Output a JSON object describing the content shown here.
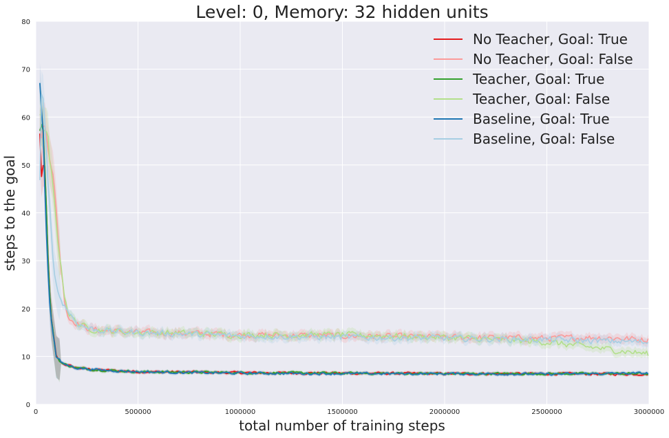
{
  "chart_data": {
    "type": "line",
    "title": "Level: 0, Memory: 32 hidden units",
    "xlabel": "total number of training steps",
    "ylabel": "steps to the goal",
    "xlim": [
      0,
      3000000
    ],
    "ylim": [
      0,
      80
    ],
    "xticks": [
      0,
      500000,
      1000000,
      1500000,
      2000000,
      2500000,
      3000000
    ],
    "xtick_labels": [
      "0",
      "500000",
      "1000000",
      "1500000",
      "2000000",
      "2500000",
      "3000000"
    ],
    "yticks": [
      0,
      10,
      20,
      30,
      40,
      50,
      60,
      70,
      80
    ],
    "ytick_labels": [
      "0",
      "10",
      "20",
      "30",
      "40",
      "50",
      "60",
      "70",
      "80"
    ],
    "grid": true,
    "background": "#eaeaf2",
    "legend_position": "top-right",
    "series": [
      {
        "name": "No Teacher, Goal: True",
        "color": "#e41a1c",
        "x": [
          20000,
          30000,
          40000,
          50000,
          60000,
          75000,
          100000,
          130000,
          200000,
          300000,
          500000,
          800000,
          1000000,
          1500000,
          2000000,
          2500000,
          3000000
        ],
        "y": [
          56,
          46,
          52,
          42,
          30,
          18,
          10,
          8.5,
          7.6,
          7.2,
          6.8,
          6.7,
          6.6,
          6.5,
          6.4,
          6.4,
          6.3
        ]
      },
      {
        "name": "No Teacher, Goal: False",
        "color": "#fb9a99",
        "x": [
          20000,
          40000,
          60000,
          80000,
          100000,
          120000,
          140000,
          160000,
          200000,
          250000,
          300000,
          500000,
          800000,
          1000000,
          1500000,
          2000000,
          2500000,
          2750000,
          3000000
        ],
        "y": [
          56,
          58,
          55,
          50,
          40,
          30,
          22,
          18,
          17,
          16,
          15.5,
          15,
          14.8,
          14.5,
          14.3,
          14,
          13.8,
          14,
          13.5
        ]
      },
      {
        "name": "Teacher, Goal: True",
        "color": "#33a02c",
        "x": [
          20000,
          30000,
          40000,
          50000,
          60000,
          75000,
          100000,
          130000,
          200000,
          300000,
          500000,
          800000,
          1000000,
          1500000,
          2000000,
          2500000,
          3000000
        ],
        "y": [
          59,
          60,
          55,
          44,
          30,
          18,
          10,
          8.5,
          7.6,
          7.2,
          6.8,
          6.7,
          6.6,
          6.5,
          6.4,
          6.4,
          6.4
        ]
      },
      {
        "name": "Teacher, Goal: False",
        "color": "#b2df8a",
        "x": [
          20000,
          40000,
          60000,
          80000,
          100000,
          120000,
          140000,
          160000,
          200000,
          250000,
          300000,
          500000,
          800000,
          1000000,
          1500000,
          2000000,
          2500000,
          2800000,
          3000000
        ],
        "y": [
          59,
          58,
          54,
          46,
          38,
          30,
          23,
          19,
          17,
          16,
          15.5,
          15,
          14.8,
          14.5,
          14.5,
          14,
          13,
          11.5,
          10.5
        ]
      },
      {
        "name": "Baseline, Goal: True",
        "color": "#1f78b4",
        "x": [
          20000,
          25000,
          35000,
          45000,
          55000,
          70000,
          100000,
          130000,
          200000,
          300000,
          500000,
          800000,
          1000000,
          1500000,
          2000000,
          2500000,
          3000000
        ],
        "y": [
          66,
          63,
          58,
          45,
          32,
          20,
          10,
          8.5,
          7.6,
          7.2,
          6.8,
          6.6,
          6.5,
          6.4,
          6.4,
          6.3,
          6.5
        ]
      },
      {
        "name": "Baseline, Goal: False",
        "color": "#a6cee3",
        "x": [
          20000,
          30000,
          40000,
          60000,
          80000,
          100000,
          120000,
          150000,
          200000,
          250000,
          300000,
          500000,
          800000,
          1000000,
          1500000,
          2000000,
          2500000,
          3000000
        ],
        "y": [
          46,
          70,
          60,
          45,
          33,
          25,
          22,
          20,
          17,
          16,
          15.5,
          15,
          14.6,
          14.3,
          14,
          13.8,
          13.5,
          13
        ]
      }
    ]
  }
}
